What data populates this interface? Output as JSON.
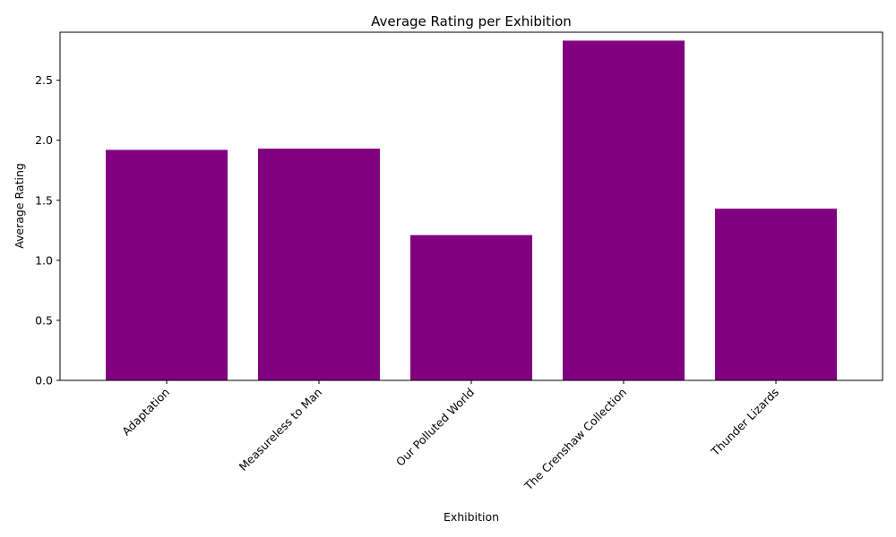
{
  "chart_data": {
    "type": "bar",
    "title": "Average Rating per Exhibition",
    "xlabel": "Exhibition",
    "ylabel": "Average Rating",
    "categories": [
      "Adaptation",
      "Measureless to Man",
      "Our Polluted World",
      "The Crenshaw Collection",
      "Thunder Lizards"
    ],
    "values": [
      1.92,
      1.93,
      1.21,
      2.83,
      1.43
    ],
    "ylim": [
      0,
      2.9
    ],
    "yticks": [
      "0.0",
      "0.5",
      "1.0",
      "1.5",
      "2.0",
      "2.5"
    ],
    "bar_color": "#800080",
    "grid": false,
    "legend": "none"
  }
}
